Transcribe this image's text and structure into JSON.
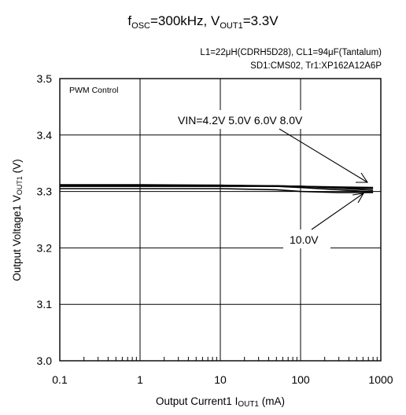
{
  "chart_data": {
    "type": "line",
    "title": {
      "f_main": "f",
      "f_sub": "OSC",
      "f_rest": "=300kHz, V",
      "v_sub": "OUT1",
      "v_rest": "=3.3V"
    },
    "conditions": [
      "L1=22μH(CDRH5D28), CL1=94μF(Tantalum)",
      "SD1:CMS02, Tr1:XP162A12A6P"
    ],
    "control_label": "PWM Control",
    "xlabel": {
      "main": "Output Current1  ",
      "sym": "I",
      "sub": "OUT1",
      "unit": " (mA)"
    },
    "ylabel": {
      "main": "Output Voltage1  V",
      "sub": "OUT1",
      "unit": " (V)"
    },
    "x_scale": "log",
    "xlim": [
      0.1,
      1000
    ],
    "ylim": [
      3.0,
      3.5
    ],
    "x_ticks": [
      0.1,
      1,
      10,
      100,
      1000
    ],
    "x_tick_labels": [
      "0.1",
      "1",
      "10",
      "100",
      "1000"
    ],
    "y_ticks": [
      3.0,
      3.1,
      3.2,
      3.3,
      3.4,
      3.5
    ],
    "y_tick_labels": [
      "3.0",
      "3.1",
      "3.2",
      "3.3",
      "3.4",
      "3.5"
    ],
    "grid": true,
    "annotations": {
      "vin_group": "VIN=4.2V 5.0V 6.0V 8.0V",
      "vin_single": "10.0V"
    },
    "series": [
      {
        "name": "4.2V",
        "x": [
          0.1,
          1,
          10,
          50,
          100,
          300,
          800
        ],
        "y": [
          3.312,
          3.312,
          3.311,
          3.309,
          3.307,
          3.303,
          3.299
        ]
      },
      {
        "name": "5.0V",
        "x": [
          0.1,
          1,
          10,
          50,
          100,
          300,
          800
        ],
        "y": [
          3.311,
          3.311,
          3.311,
          3.31,
          3.309,
          3.306,
          3.302
        ]
      },
      {
        "name": "6.0V",
        "x": [
          0.1,
          1,
          10,
          50,
          100,
          300,
          800
        ],
        "y": [
          3.31,
          3.31,
          3.31,
          3.31,
          3.309,
          3.307,
          3.305
        ]
      },
      {
        "name": "8.0V",
        "x": [
          0.1,
          1,
          10,
          50,
          100,
          300,
          800
        ],
        "y": [
          3.309,
          3.309,
          3.309,
          3.309,
          3.309,
          3.308,
          3.307
        ]
      },
      {
        "name": "10.0V",
        "x": [
          0.1,
          1,
          10,
          50,
          100,
          300,
          800
        ],
        "y": [
          3.305,
          3.305,
          3.305,
          3.303,
          3.3,
          3.298,
          3.298
        ]
      }
    ]
  }
}
